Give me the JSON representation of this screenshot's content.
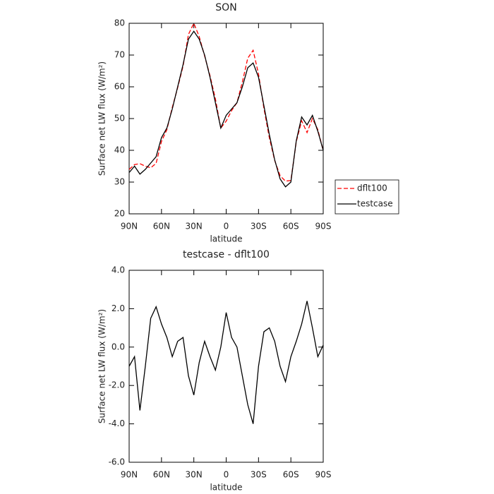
{
  "chart_data": [
    {
      "type": "line",
      "title": "SON",
      "xlabel": "latitude",
      "ylabel": "Surface net LW flux (W/m²)",
      "x": [
        90,
        85,
        80,
        75,
        70,
        65,
        60,
        55,
        50,
        45,
        40,
        35,
        30,
        25,
        20,
        15,
        10,
        5,
        0,
        -5,
        -10,
        -15,
        -20,
        -25,
        -30,
        -35,
        -40,
        -45,
        -50,
        -55,
        -60,
        -65,
        -70,
        -75,
        -80,
        -85,
        -90
      ],
      "series": [
        {
          "name": "dflt100",
          "color": "#ff0000",
          "dash": true,
          "values": [
            34,
            35.5,
            35.8,
            35,
            34.5,
            35.9,
            42.8,
            46.5,
            53.5,
            59.7,
            66.5,
            76.5,
            80,
            75.8,
            69.7,
            63.5,
            56.2,
            47,
            49.2,
            52.5,
            55,
            61.5,
            69,
            71.5,
            64,
            53.2,
            44,
            36.8,
            32,
            30.3,
            30.5,
            42.7,
            49.3,
            45.6,
            50,
            46.5,
            39.9
          ]
        },
        {
          "name": "testcase",
          "color": "#000000",
          "dash": false,
          "values": [
            33,
            35,
            32.5,
            34,
            36,
            38,
            44,
            47,
            53,
            60,
            67,
            75,
            77.5,
            75,
            70,
            63,
            55,
            47,
            51,
            53,
            55,
            60,
            66,
            67.5,
            63,
            54,
            45,
            37,
            31,
            28.5,
            30,
            43,
            50.5,
            48,
            51,
            46,
            40
          ]
        }
      ],
      "xlim": [
        90,
        -90
      ],
      "xticks": [
        {
          "value": 90,
          "label": "90N"
        },
        {
          "value": 60,
          "label": "60N"
        },
        {
          "value": 30,
          "label": "30N"
        },
        0,
        {
          "value": -30,
          "label": "30S"
        },
        {
          "value": -60,
          "label": "60S"
        },
        {
          "value": -90,
          "label": "90S"
        }
      ],
      "ylim": [
        20,
        80
      ],
      "yticks": [
        20,
        30,
        40,
        50,
        60,
        70,
        80
      ],
      "legend": "right"
    },
    {
      "type": "line",
      "title": "testcase - dflt100",
      "xlabel": "latitude",
      "ylabel": "Surface net LW flux (W/m²)",
      "x": [
        90,
        85,
        80,
        75,
        70,
        65,
        60,
        55,
        50,
        45,
        40,
        35,
        30,
        25,
        20,
        15,
        10,
        5,
        0,
        -5,
        -10,
        -15,
        -20,
        -25,
        -30,
        -35,
        -40,
        -45,
        -50,
        -55,
        -60,
        -65,
        -70,
        -75,
        -80,
        -85,
        -90
      ],
      "series": [
        {
          "color": "#000000",
          "dash": false,
          "values": [
            -1.0,
            -0.5,
            -3.3,
            -1.0,
            1.5,
            2.1,
            1.2,
            0.5,
            -0.5,
            0.3,
            0.5,
            -1.5,
            -2.5,
            -0.8,
            0.3,
            -0.5,
            -1.2,
            0.0,
            1.8,
            0.5,
            0.0,
            -1.5,
            -3.0,
            -4.0,
            -1.0,
            0.8,
            1.0,
            0.3,
            -1.0,
            -1.8,
            -0.5,
            0.3,
            1.2,
            2.4,
            1.0,
            -0.5,
            0.1
          ]
        }
      ],
      "xlim": [
        90,
        -90
      ],
      "xticks": [
        {
          "value": 90,
          "label": "90N"
        },
        {
          "value": 60,
          "label": "60N"
        },
        {
          "value": 30,
          "label": "30N"
        },
        0,
        {
          "value": -30,
          "label": "30S"
        },
        {
          "value": -60,
          "label": "60S"
        },
        {
          "value": -90,
          "label": "90S"
        }
      ],
      "ylim": [
        -6,
        4
      ],
      "yticks": [
        {
          "value": -6,
          "label": "-6.0"
        },
        {
          "value": -4,
          "label": "-4.0"
        },
        {
          "value": -2,
          "label": "-2.0"
        },
        {
          "value": 0,
          "label": "0.0"
        },
        {
          "value": 2,
          "label": "2.0"
        },
        {
          "value": 4,
          "label": "4.0"
        }
      ]
    }
  ]
}
